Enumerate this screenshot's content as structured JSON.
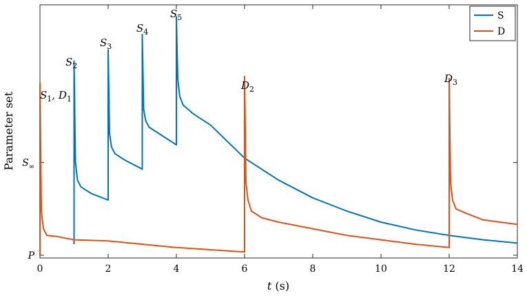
{
  "chart_data": {
    "type": "line",
    "xlabel": "t (s)",
    "ylabel": "Parameter set",
    "xlim": [
      0,
      14
    ],
    "x_ticks": [
      "0",
      "2",
      "4",
      "6",
      "8",
      "10",
      "12",
      "14"
    ],
    "y_tick_labels": [
      "P",
      "S∞"
    ],
    "legend": {
      "position": "top-right",
      "entries": [
        "S",
        "D"
      ]
    },
    "colors": {
      "S": "#0072BD",
      "D": "#D95319"
    },
    "series": [
      {
        "name": "S",
        "points": [
          [
            1.0,
            0.05
          ],
          [
            1.0,
            0.88
          ],
          [
            1.04,
            0.42
          ],
          [
            1.1,
            0.34
          ],
          [
            1.2,
            0.31
          ],
          [
            1.5,
            0.28
          ],
          [
            2.0,
            0.25
          ],
          [
            2.0,
            0.93
          ],
          [
            2.04,
            0.55
          ],
          [
            2.1,
            0.49
          ],
          [
            2.2,
            0.46
          ],
          [
            2.5,
            0.43
          ],
          [
            3.0,
            0.39
          ],
          [
            3.0,
            1.0
          ],
          [
            3.04,
            0.66
          ],
          [
            3.1,
            0.61
          ],
          [
            3.2,
            0.58
          ],
          [
            3.5,
            0.55
          ],
          [
            4.0,
            0.5
          ],
          [
            4.0,
            1.08
          ],
          [
            4.04,
            0.8
          ],
          [
            4.1,
            0.72
          ],
          [
            4.2,
            0.68
          ],
          [
            4.5,
            0.64
          ],
          [
            5.0,
            0.59
          ],
          [
            6.0,
            0.44
          ],
          [
            7.0,
            0.34
          ],
          [
            8.0,
            0.26
          ],
          [
            9.0,
            0.2
          ],
          [
            10.0,
            0.15
          ],
          [
            11.0,
            0.115
          ],
          [
            12.0,
            0.09
          ],
          [
            13.0,
            0.07
          ],
          [
            14.0,
            0.055
          ]
        ]
      },
      {
        "name": "D",
        "points": [
          [
            0.0,
            0.0
          ],
          [
            0.0,
            0.78
          ],
          [
            0.04,
            0.2
          ],
          [
            0.1,
            0.12
          ],
          [
            0.2,
            0.09
          ],
          [
            0.5,
            0.085
          ],
          [
            1.0,
            0.07
          ],
          [
            2.0,
            0.065
          ],
          [
            3.0,
            0.05
          ],
          [
            4.0,
            0.035
          ],
          [
            5.0,
            0.025
          ],
          [
            6.0,
            0.015
          ],
          [
            6.0,
            0.81
          ],
          [
            6.04,
            0.33
          ],
          [
            6.1,
            0.25
          ],
          [
            6.2,
            0.2
          ],
          [
            6.5,
            0.17
          ],
          [
            7.0,
            0.15
          ],
          [
            8.0,
            0.12
          ],
          [
            9.0,
            0.09
          ],
          [
            10.0,
            0.07
          ],
          [
            11.0,
            0.05
          ],
          [
            12.0,
            0.035
          ],
          [
            12.0,
            0.8
          ],
          [
            12.04,
            0.33
          ],
          [
            12.1,
            0.25
          ],
          [
            12.2,
            0.21
          ],
          [
            12.5,
            0.19
          ],
          [
            13.0,
            0.16
          ],
          [
            14.0,
            0.14
          ]
        ]
      }
    ],
    "annotations": [
      {
        "label": "S",
        "sub": "1",
        "text2": ", D",
        "sub2": "1"
      },
      {
        "label": "S",
        "sub": "2"
      },
      {
        "label": "S",
        "sub": "3"
      },
      {
        "label": "S",
        "sub": "4"
      },
      {
        "label": "S",
        "sub": "5"
      },
      {
        "label": "D",
        "sub": "2"
      },
      {
        "label": "D",
        "sub": "3"
      }
    ]
  }
}
